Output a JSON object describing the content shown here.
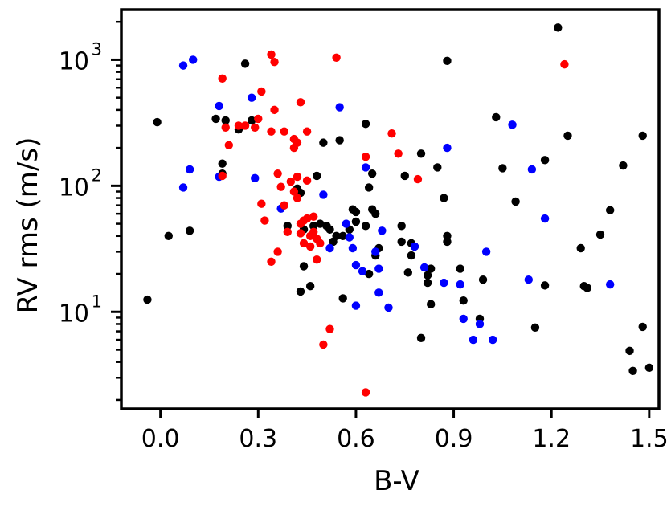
{
  "chart_data": {
    "type": "scatter",
    "title": "",
    "xlabel": "B-V",
    "ylabel": "RV rms (m/s)",
    "xlim": [
      -0.12,
      1.53
    ],
    "ylim": [
      1.7,
      2500
    ],
    "yscale": "log",
    "grid": false,
    "xticks": [
      {
        "value": 0.0,
        "label": "0.0"
      },
      {
        "value": 0.3,
        "label": "0.3"
      },
      {
        "value": 0.6,
        "label": "0.6"
      },
      {
        "value": 0.9,
        "label": "0.9"
      },
      {
        "value": 1.2,
        "label": "1.2"
      },
      {
        "value": 1.5,
        "label": "1.5"
      }
    ],
    "yticks_major": [
      {
        "value": 10,
        "base": "10",
        "exp": "1"
      },
      {
        "value": 100,
        "base": "10",
        "exp": "2"
      },
      {
        "value": 1000,
        "base": "10",
        "exp": "3"
      }
    ],
    "yticks_minor": [
      2,
      3,
      4,
      5,
      6,
      7,
      8,
      9,
      20,
      30,
      40,
      50,
      60,
      70,
      80,
      90,
      200,
      300,
      400,
      500,
      600,
      700,
      800,
      900,
      2000
    ],
    "series": [
      {
        "color": "#000000",
        "points": [
          [
            -0.04,
            12.5
          ],
          [
            -0.01,
            320
          ],
          [
            0.025,
            40
          ],
          [
            0.09,
            44
          ],
          [
            0.17,
            340
          ],
          [
            0.19,
            150
          ],
          [
            0.19,
            125
          ],
          [
            0.2,
            330
          ],
          [
            0.24,
            280
          ],
          [
            0.26,
            930
          ],
          [
            0.28,
            330
          ],
          [
            0.39,
            48
          ],
          [
            0.42,
            95
          ],
          [
            0.43,
            88
          ],
          [
            0.43,
            14.5
          ],
          [
            0.44,
            23
          ],
          [
            0.44,
            45
          ],
          [
            0.46,
            16
          ],
          [
            0.47,
            48
          ],
          [
            0.48,
            120
          ],
          [
            0.49,
            50
          ],
          [
            0.5,
            220
          ],
          [
            0.51,
            48
          ],
          [
            0.52,
            45
          ],
          [
            0.53,
            36
          ],
          [
            0.54,
            40
          ],
          [
            0.55,
            230
          ],
          [
            0.56,
            12.8
          ],
          [
            0.56,
            40
          ],
          [
            0.58,
            45
          ],
          [
            0.59,
            65
          ],
          [
            0.6,
            52
          ],
          [
            0.6,
            62
          ],
          [
            0.63,
            310
          ],
          [
            0.63,
            48
          ],
          [
            0.64,
            20
          ],
          [
            0.64,
            97
          ],
          [
            0.65,
            65
          ],
          [
            0.65,
            125
          ],
          [
            0.66,
            60
          ],
          [
            0.66,
            28
          ],
          [
            0.67,
            32
          ],
          [
            0.74,
            48
          ],
          [
            0.74,
            36
          ],
          [
            0.75,
            120
          ],
          [
            0.76,
            20.5
          ],
          [
            0.77,
            28
          ],
          [
            0.77,
            35
          ],
          [
            0.78,
            33
          ],
          [
            0.8,
            6.2
          ],
          [
            0.8,
            180
          ],
          [
            0.82,
            17
          ],
          [
            0.82,
            19.5
          ],
          [
            0.83,
            11.5
          ],
          [
            0.83,
            22
          ],
          [
            0.85,
            140
          ],
          [
            0.87,
            80
          ],
          [
            0.88,
            40
          ],
          [
            0.88,
            36
          ],
          [
            0.88,
            980
          ],
          [
            0.92,
            22
          ],
          [
            0.93,
            12.3
          ],
          [
            0.98,
            8.8
          ],
          [
            0.99,
            18
          ],
          [
            1.03,
            350
          ],
          [
            1.05,
            138
          ],
          [
            1.09,
            75
          ],
          [
            1.15,
            7.5
          ],
          [
            1.18,
            160
          ],
          [
            1.18,
            16.2
          ],
          [
            1.22,
            1800
          ],
          [
            1.25,
            250
          ],
          [
            1.29,
            32
          ],
          [
            1.3,
            16
          ],
          [
            1.31,
            15.5
          ],
          [
            1.35,
            41
          ],
          [
            1.38,
            64
          ],
          [
            1.42,
            145
          ],
          [
            1.44,
            4.9
          ],
          [
            1.45,
            3.4
          ],
          [
            1.48,
            250
          ],
          [
            1.48,
            7.6
          ],
          [
            1.5,
            3.6
          ]
        ]
      },
      {
        "color": "#0000ff",
        "points": [
          [
            0.07,
            900
          ],
          [
            0.07,
            97
          ],
          [
            0.09,
            135
          ],
          [
            0.1,
            1000
          ],
          [
            0.18,
            430
          ],
          [
            0.18,
            118
          ],
          [
            0.28,
            500
          ],
          [
            0.29,
            115
          ],
          [
            0.37,
            66
          ],
          [
            0.5,
            85
          ],
          [
            0.52,
            32
          ],
          [
            0.55,
            420
          ],
          [
            0.57,
            50
          ],
          [
            0.58,
            39
          ],
          [
            0.59,
            32
          ],
          [
            0.6,
            11.2
          ],
          [
            0.6,
            23.5
          ],
          [
            0.62,
            21
          ],
          [
            0.63,
            140
          ],
          [
            0.66,
            30
          ],
          [
            0.67,
            22
          ],
          [
            0.67,
            14.2
          ],
          [
            0.68,
            44
          ],
          [
            0.7,
            10.8
          ],
          [
            0.78,
            33
          ],
          [
            0.81,
            22.5
          ],
          [
            0.87,
            17
          ],
          [
            0.88,
            200
          ],
          [
            0.92,
            16.5
          ],
          [
            0.93,
            8.8
          ],
          [
            0.96,
            6
          ],
          [
            0.98,
            8
          ],
          [
            1.0,
            30
          ],
          [
            1.02,
            6
          ],
          [
            1.08,
            305
          ],
          [
            1.13,
            18
          ],
          [
            1.14,
            135
          ],
          [
            1.18,
            55
          ],
          [
            1.38,
            16.5
          ]
        ]
      },
      {
        "color": "#ff0000",
        "points": [
          [
            0.19,
            710
          ],
          [
            0.19,
            120
          ],
          [
            0.2,
            290
          ],
          [
            0.21,
            210
          ],
          [
            0.24,
            300
          ],
          [
            0.26,
            300
          ],
          [
            0.29,
            290
          ],
          [
            0.3,
            340
          ],
          [
            0.31,
            560
          ],
          [
            0.31,
            72
          ],
          [
            0.32,
            53
          ],
          [
            0.34,
            1100
          ],
          [
            0.34,
            270
          ],
          [
            0.34,
            25
          ],
          [
            0.35,
            960
          ],
          [
            0.35,
            400
          ],
          [
            0.36,
            30
          ],
          [
            0.36,
            125
          ],
          [
            0.37,
            98
          ],
          [
            0.38,
            270
          ],
          [
            0.38,
            70
          ],
          [
            0.39,
            43
          ],
          [
            0.4,
            108
          ],
          [
            0.41,
            90
          ],
          [
            0.41,
            200
          ],
          [
            0.41,
            235
          ],
          [
            0.42,
            118
          ],
          [
            0.42,
            80
          ],
          [
            0.42,
            220
          ],
          [
            0.43,
            460
          ],
          [
            0.43,
            42
          ],
          [
            0.43,
            50
          ],
          [
            0.44,
            35
          ],
          [
            0.44,
            53
          ],
          [
            0.45,
            270
          ],
          [
            0.45,
            110
          ],
          [
            0.45,
            55
          ],
          [
            0.46,
            40
          ],
          [
            0.46,
            33
          ],
          [
            0.47,
            43
          ],
          [
            0.47,
            57
          ],
          [
            0.48,
            26
          ],
          [
            0.48,
            38
          ],
          [
            0.49,
            35
          ],
          [
            0.5,
            5.5
          ],
          [
            0.52,
            7.3
          ],
          [
            0.54,
            1040
          ],
          [
            0.63,
            170
          ],
          [
            0.63,
            2.3
          ],
          [
            0.71,
            260
          ],
          [
            0.73,
            180
          ],
          [
            0.79,
            113
          ],
          [
            1.24,
            920
          ]
        ]
      }
    ]
  }
}
